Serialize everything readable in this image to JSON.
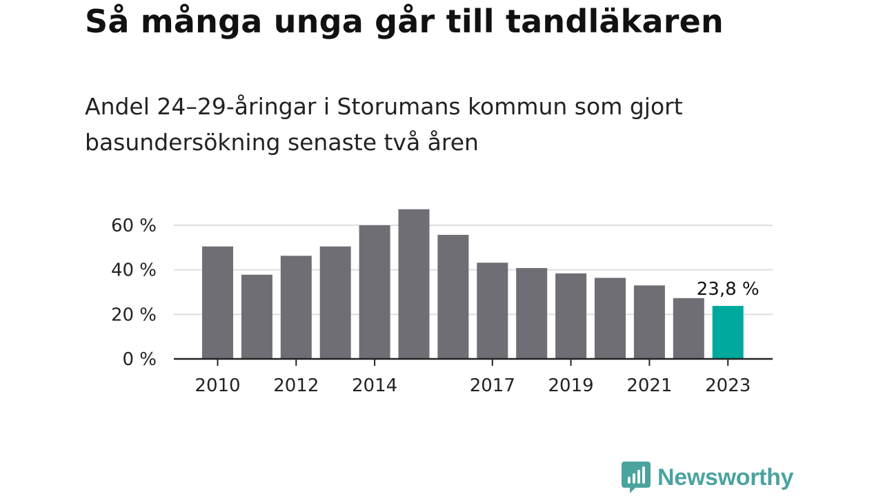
{
  "title": "Så många unga går till tandläkaren",
  "subtitle": "Andel 24–29-åringar i Storumans kommun som gjort basundersökning senaste två åren",
  "brand": {
    "name": "Newsworthy"
  },
  "colors": {
    "bar": "#6f6e74",
    "highlight": "#00a99d",
    "grid": "#dddddd",
    "axis": "#222222",
    "brand": "#4aa39f"
  },
  "chart_data": {
    "type": "bar",
    "categories": [
      "2010",
      "2011",
      "2012",
      "2013",
      "2014",
      "2015",
      "2016",
      "2017",
      "2018",
      "2019",
      "2020",
      "2021",
      "2022",
      "2023"
    ],
    "values": [
      50.5,
      37.8,
      46.3,
      50.5,
      60.0,
      67.2,
      55.7,
      43.2,
      40.8,
      38.4,
      36.4,
      33.0,
      27.3,
      23.8
    ],
    "tick_labels": [
      "2010",
      "",
      "2012",
      "",
      "2014",
      "",
      "",
      "2017",
      "",
      "2019",
      "",
      "2021",
      "",
      "2023"
    ],
    "ylim": [
      0,
      70
    ],
    "yticks": [
      0,
      20,
      40,
      60
    ],
    "ytick_labels": [
      "0 %",
      "20 %",
      "40 %",
      "60 %"
    ],
    "highlight_index": 13,
    "highlight_label": "23,8 %",
    "grid": true,
    "xlabel": "",
    "ylabel": ""
  }
}
